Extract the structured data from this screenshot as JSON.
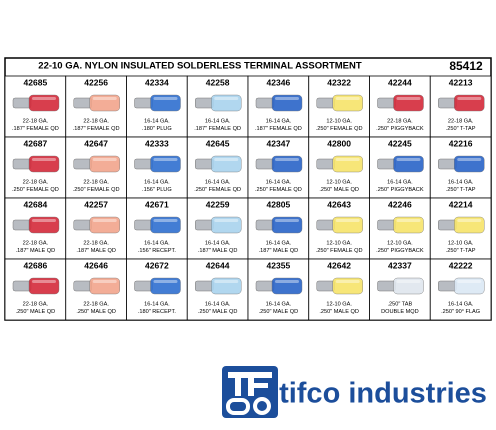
{
  "header": {
    "title": "22-10 GA. NYLON INSULATED SOLDERLESS TERMINAL ASSORTMENT",
    "part_number": "85412"
  },
  "grid": {
    "rows": [
      [
        {
          "code": "42685",
          "lines": [
            "22-18 GA.",
            ".187\" FEMALE QD"
          ]
        },
        {
          "code": "42256",
          "lines": [
            "22-18 GA.",
            ".187\" FEMALE QD"
          ]
        },
        {
          "code": "42334",
          "lines": [
            "16-14 GA.",
            ".180\" PLUG"
          ]
        },
        {
          "code": "42258",
          "lines": [
            "16-14 GA.",
            ".187\" FEMALE QD"
          ]
        },
        {
          "code": "42346",
          "lines": [
            "16-14 GA.",
            ".187\" FEMALE QD"
          ]
        },
        {
          "code": "42322",
          "lines": [
            "12-10 GA.",
            ".250\" FEMALE QD"
          ]
        },
        {
          "code": "42244",
          "lines": [
            "22-18 GA.",
            ".250\" PIGGYBACK"
          ]
        },
        {
          "code": "42213",
          "lines": [
            "22-18 GA.",
            ".250\" T-TAP"
          ]
        }
      ],
      [
        {
          "code": "42687",
          "lines": [
            "22-18 GA.",
            ".250\" FEMALE QD"
          ]
        },
        {
          "code": "42647",
          "lines": [
            "22-18 GA.",
            ".250\" FEMALE QD"
          ]
        },
        {
          "code": "42333",
          "lines": [
            "16-14 GA.",
            ".156\" PLUG"
          ]
        },
        {
          "code": "42645",
          "lines": [
            "16-14 GA.",
            ".250\" FEMALE QD"
          ]
        },
        {
          "code": "42347",
          "lines": [
            "16-14 GA.",
            ".250\" FEMALE QD"
          ]
        },
        {
          "code": "42800",
          "lines": [
            "12-10 GA.",
            ".250\" MALE QD"
          ]
        },
        {
          "code": "42245",
          "lines": [
            "16-14 GA.",
            ".250\" PIGGYBACK"
          ]
        },
        {
          "code": "42216",
          "lines": [
            "16-14 GA.",
            ".250\" T-TAP"
          ]
        }
      ],
      [
        {
          "code": "42684",
          "lines": [
            "22-18 GA.",
            ".187\" MALE QD"
          ]
        },
        {
          "code": "42257",
          "lines": [
            "22-18 GA.",
            ".187\" MALE QD"
          ]
        },
        {
          "code": "42671",
          "lines": [
            "16-14 GA.",
            ".156\" RECEPT."
          ]
        },
        {
          "code": "42259",
          "lines": [
            "16-14 GA.",
            ".187\" MALE QD"
          ]
        },
        {
          "code": "42805",
          "lines": [
            "16-14 GA.",
            ".187\" MALE QD"
          ]
        },
        {
          "code": "42643",
          "lines": [
            "12-10 GA.",
            ".250\" FEMALE QD"
          ]
        },
        {
          "code": "42246",
          "lines": [
            "12-10 GA.",
            ".250\" PIGGYBACK"
          ]
        },
        {
          "code": "42214",
          "lines": [
            "12-10 GA.",
            ".250\" T-TAP"
          ]
        }
      ],
      [
        {
          "code": "42686",
          "lines": [
            "22-18 GA.",
            ".250\" MALE QD"
          ]
        },
        {
          "code": "42646",
          "lines": [
            "22-18 GA.",
            ".250\" MALE QD"
          ]
        },
        {
          "code": "42672",
          "lines": [
            "16-14 GA.",
            ".180\" RECEPT."
          ]
        },
        {
          "code": "42644",
          "lines": [
            "16-14 GA.",
            ".250\" MALE QD"
          ]
        },
        {
          "code": "42355",
          "lines": [
            "16-14 GA.",
            ".250\" MALE QD"
          ]
        },
        {
          "code": "42642",
          "lines": [
            "12-10 GA.",
            ".250\" MALE QD"
          ]
        },
        {
          "code": "42337",
          "lines": [
            ".250\" TAB",
            "DOUBLE MQD"
          ]
        },
        {
          "code": "42222",
          "lines": [
            "16-14 GA.",
            ".250\" 90° FLAG"
          ]
        }
      ]
    ]
  },
  "brand": "tifco industries"
}
